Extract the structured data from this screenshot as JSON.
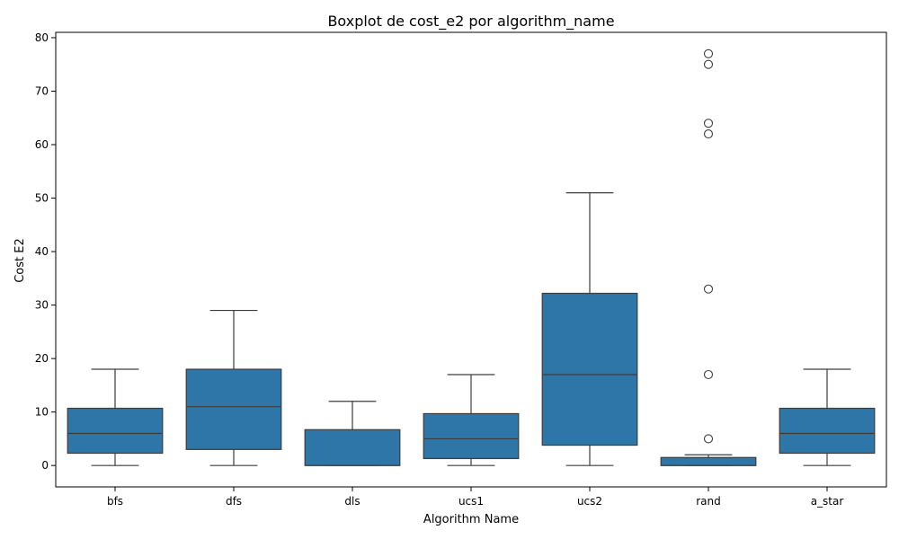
{
  "chart_data": {
    "type": "box",
    "title": "Boxplot de cost_e2 por algorithm_name",
    "xlabel": "Algorithm Name",
    "ylabel": "Cost E2",
    "ylim": [
      -4,
      81
    ],
    "yticks": [
      0,
      10,
      20,
      30,
      40,
      50,
      60,
      70,
      80
    ],
    "grid": false,
    "box_color": "#2e75a8",
    "line_color": "#3d3d3d",
    "categories": [
      "bfs",
      "dfs",
      "dls",
      "ucs1",
      "ucs2",
      "rand",
      "a_star"
    ],
    "boxes": [
      {
        "category": "bfs",
        "whislo": 0,
        "q1": 2.3,
        "med": 6,
        "q3": 10.7,
        "whishi": 18,
        "fliers": []
      },
      {
        "category": "dfs",
        "whislo": 0,
        "q1": 3,
        "med": 11,
        "q3": 18,
        "whishi": 29,
        "fliers": []
      },
      {
        "category": "dls",
        "whislo": 0,
        "q1": 0,
        "med": 0,
        "q3": 6.7,
        "whishi": 12,
        "fliers": []
      },
      {
        "category": "ucs1",
        "whislo": 0,
        "q1": 1.3,
        "med": 5,
        "q3": 9.7,
        "whishi": 17,
        "fliers": []
      },
      {
        "category": "ucs2",
        "whislo": 0,
        "q1": 3.8,
        "med": 17,
        "q3": 32.2,
        "whishi": 51,
        "fliers": []
      },
      {
        "category": "rand",
        "whislo": 0,
        "q1": 0,
        "med": 0,
        "q3": 1.5,
        "whishi": 2,
        "fliers": [
          5,
          17,
          33,
          62,
          64,
          75,
          77
        ]
      },
      {
        "category": "a_star",
        "whislo": 0,
        "q1": 2.3,
        "med": 6,
        "q3": 10.7,
        "whishi": 18,
        "fliers": []
      }
    ]
  }
}
